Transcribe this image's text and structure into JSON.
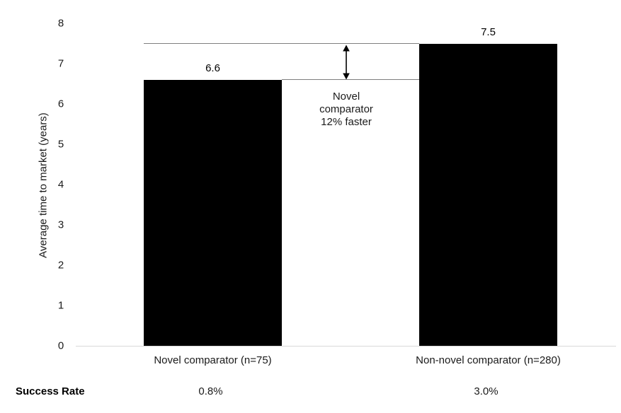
{
  "chart_data": {
    "type": "bar",
    "title": "",
    "ylabel": "Average time to market (years)",
    "xlabel": "",
    "ylim": [
      0,
      8
    ],
    "yticks": [
      0,
      1,
      2,
      3,
      4,
      5,
      6,
      7,
      8
    ],
    "categories": [
      "Novel comparator (n=75)",
      "Non-novel comparator (n=280)"
    ],
    "values": [
      6.6,
      7.5
    ],
    "value_labels": [
      "6.6",
      "7.5"
    ],
    "annotation": "Novel\ncomparator\n12% faster",
    "reference_levels": [
      7.5,
      6.6
    ],
    "grid": false,
    "legend": "none",
    "success_rate": {
      "label": "Success Rate",
      "values": [
        "0.8%",
        "3.0%"
      ]
    }
  },
  "colors": {
    "background": "#ffffff",
    "bar": "#000000",
    "text": "#1a1a1a",
    "reference_line": "#7f7f7f",
    "axis_line": "#d9d9d9",
    "arrow": "#000000"
  }
}
